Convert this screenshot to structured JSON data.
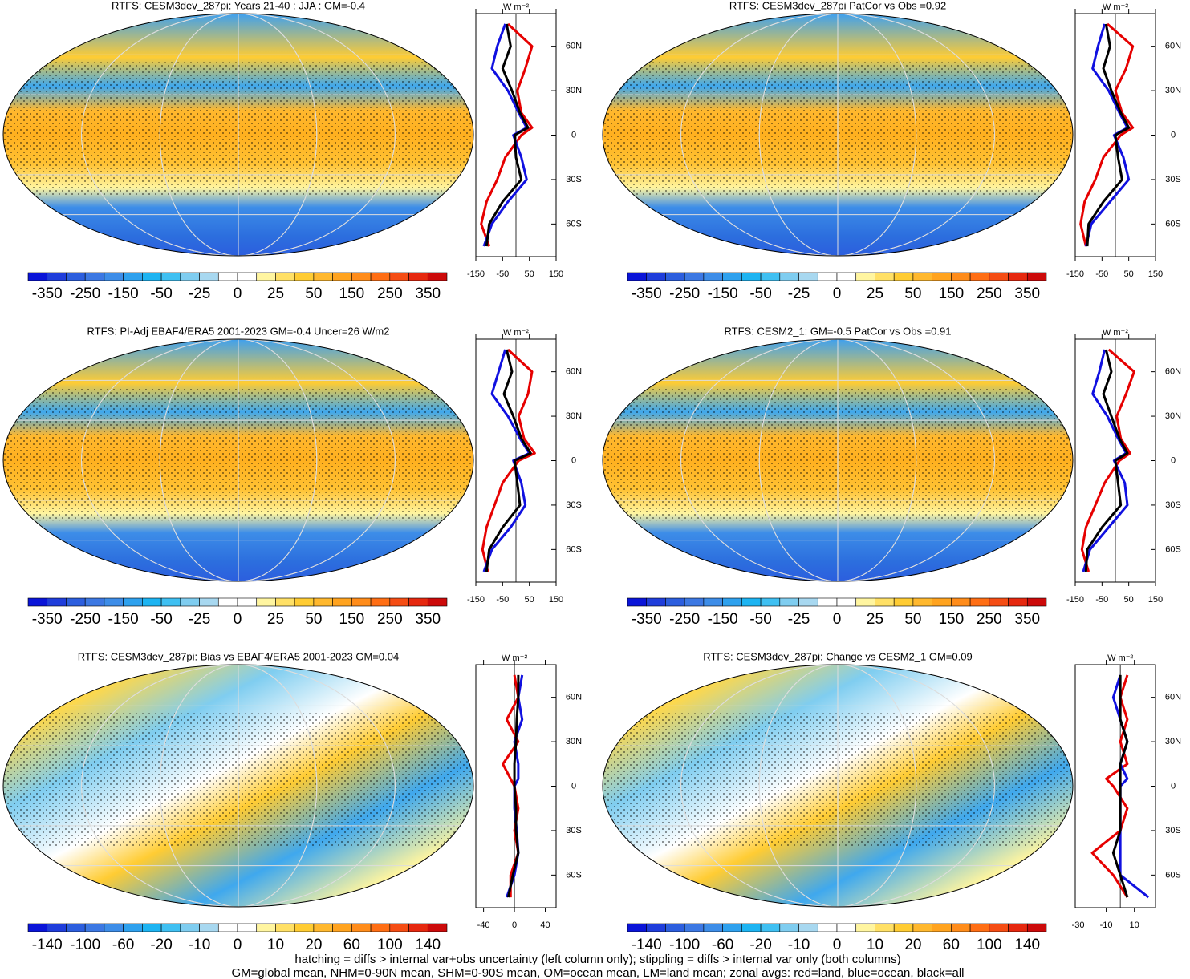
{
  "colorbar_colors": [
    "#0a14d8",
    "#1f3ddb",
    "#2c5ede",
    "#3c78e3",
    "#3d8de8",
    "#2ea1ee",
    "#1db4f2",
    "#3fc0f2",
    "#7fcdf0",
    "#a8d8f0",
    "#ffffff",
    "#ffffff",
    "#fff5a0",
    "#ffe066",
    "#ffcc33",
    "#ffb82e",
    "#ffa31f",
    "#ff8c1a",
    "#ff6e14",
    "#f54d14",
    "#e6280f",
    "#cc0a0a"
  ],
  "chart_data": [
    {
      "type": "map-zonal",
      "title": "RTFS: CESM3dev_287pi: Years 21-40 : JJA : GM=-0.4",
      "colorbar_ticks": [
        -350,
        -250,
        -150,
        -50,
        -25,
        0,
        25,
        50,
        150,
        250,
        350
      ],
      "units": "W m⁻²",
      "y": [
        75,
        60,
        45,
        30,
        15,
        5,
        0,
        -15,
        -30,
        -45,
        -60,
        -75
      ],
      "ylim": [
        -82,
        82
      ],
      "yticks": [
        {
          "value": 60,
          "label": "60N"
        },
        {
          "value": 30,
          "label": "30N"
        },
        0,
        {
          "value": -30,
          "label": "30S"
        },
        {
          "value": -60,
          "label": "60S"
        }
      ],
      "xlim": [
        -150,
        150
      ],
      "xticks": [
        -150,
        -50,
        50,
        150
      ],
      "series": [
        {
          "name": "land",
          "color": "#e60000",
          "values": [
            -30,
            60,
            35,
            5,
            20,
            60,
            20,
            -40,
            -70,
            -110,
            -130,
            -100
          ]
        },
        {
          "name": "ocean",
          "color": "#1010e0",
          "values": [
            -40,
            -70,
            -90,
            -30,
            10,
            40,
            -10,
            20,
            40,
            -30,
            -90,
            -120
          ]
        },
        {
          "name": "all",
          "color": "#000000",
          "values": [
            -35,
            -20,
            -50,
            -15,
            15,
            45,
            -5,
            0,
            20,
            -50,
            -100,
            -110
          ]
        }
      ]
    },
    {
      "type": "map-zonal",
      "title": "RTFS: CESM3dev_287pi PatCor vs Obs =0.92",
      "colorbar_ticks": [
        -350,
        -250,
        -150,
        -50,
        -25,
        0,
        25,
        50,
        150,
        250,
        350
      ],
      "units": "W m⁻²",
      "y": [
        75,
        60,
        45,
        30,
        15,
        5,
        0,
        -15,
        -30,
        -45,
        -60,
        -75
      ],
      "ylim": [
        -82,
        82
      ],
      "yticks": [
        {
          "value": 60,
          "label": "60N"
        },
        {
          "value": 30,
          "label": "30N"
        },
        0,
        {
          "value": -30,
          "label": "30S"
        },
        {
          "value": -60,
          "label": "60S"
        }
      ],
      "xlim": [
        -150,
        150
      ],
      "xticks": [
        -150,
        -50,
        50,
        150
      ],
      "series": [
        {
          "name": "land",
          "color": "#e60000",
          "values": [
            -30,
            65,
            40,
            0,
            25,
            65,
            20,
            -45,
            -75,
            -115,
            -130,
            -110
          ]
        },
        {
          "name": "ocean",
          "color": "#1010e0",
          "values": [
            -40,
            -65,
            -85,
            -25,
            15,
            45,
            -5,
            30,
            50,
            -20,
            -90,
            -110
          ]
        },
        {
          "name": "all",
          "color": "#000000",
          "values": [
            -35,
            -20,
            -45,
            -15,
            20,
            50,
            0,
            10,
            25,
            -45,
            -100,
            -105
          ]
        }
      ]
    },
    {
      "type": "map-zonal",
      "title": "RTFS: PI-Adj EBAF4/ERA5 2001-2023 GM=-0.4 Uncer=26 W/m2",
      "colorbar_ticks": [
        -350,
        -250,
        -150,
        -50,
        -25,
        0,
        25,
        50,
        150,
        250,
        350
      ],
      "units": "W m⁻²",
      "y": [
        75,
        60,
        45,
        30,
        15,
        5,
        0,
        -15,
        -30,
        -45,
        -60,
        -75
      ],
      "ylim": [
        -82,
        82
      ],
      "yticks": [
        {
          "value": 60,
          "label": "60N"
        },
        {
          "value": 30,
          "label": "30N"
        },
        0,
        {
          "value": -30,
          "label": "30S"
        },
        {
          "value": -60,
          "label": "60S"
        }
      ],
      "xlim": [
        -150,
        150
      ],
      "xticks": [
        -150,
        -50,
        50,
        150
      ],
      "series": [
        {
          "name": "land",
          "color": "#e60000",
          "values": [
            -30,
            60,
            45,
            10,
            30,
            70,
            10,
            -50,
            -80,
            -110,
            -125,
            -105
          ]
        },
        {
          "name": "ocean",
          "color": "#1010e0",
          "values": [
            -40,
            -65,
            -90,
            -30,
            15,
            50,
            -10,
            20,
            35,
            -20,
            -90,
            -120
          ]
        },
        {
          "name": "all",
          "color": "#000000",
          "values": [
            -35,
            -15,
            -45,
            -10,
            20,
            55,
            -5,
            5,
            15,
            -50,
            -100,
            -110
          ]
        }
      ]
    },
    {
      "type": "map-zonal",
      "title": "RTFS: CESM2_1: GM=-0.5 PatCor vs Obs =0.91",
      "colorbar_ticks": [
        -350,
        -250,
        -150,
        -50,
        -25,
        0,
        25,
        50,
        150,
        250,
        350
      ],
      "units": "W m⁻²",
      "y": [
        75,
        60,
        45,
        30,
        15,
        5,
        0,
        -15,
        -30,
        -45,
        -60,
        -75
      ],
      "ylim": [
        -82,
        82
      ],
      "yticks": [
        {
          "value": 60,
          "label": "60N"
        },
        {
          "value": 30,
          "label": "30N"
        },
        0,
        {
          "value": -30,
          "label": "30S"
        },
        {
          "value": -60,
          "label": "60S"
        }
      ],
      "xlim": [
        -150,
        150
      ],
      "xticks": [
        -150,
        -50,
        50,
        150
      ],
      "series": [
        {
          "name": "land",
          "color": "#e60000",
          "values": [
            -25,
            70,
            40,
            5,
            20,
            55,
            15,
            -40,
            -75,
            -110,
            -125,
            -100
          ]
        },
        {
          "name": "ocean",
          "color": "#1010e0",
          "values": [
            -40,
            -60,
            -85,
            -30,
            10,
            40,
            -5,
            35,
            45,
            -25,
            -95,
            -120
          ]
        },
        {
          "name": "all",
          "color": "#000000",
          "values": [
            -35,
            -15,
            -45,
            -15,
            15,
            45,
            0,
            10,
            20,
            -50,
            -105,
            -110
          ]
        }
      ]
    },
    {
      "type": "map-zonal",
      "title": "RTFS: CESM3dev_287pi: Bias vs EBAF4/ERA5 2001-2023 GM=0.04",
      "colorbar_ticks": [
        -140,
        -100,
        -60,
        -20,
        -10,
        0,
        10,
        20,
        60,
        100,
        140
      ],
      "units": "W m⁻²",
      "y": [
        75,
        60,
        45,
        30,
        15,
        5,
        0,
        -15,
        -30,
        -45,
        -60,
        -75
      ],
      "ylim": [
        -82,
        82
      ],
      "yticks": [
        {
          "value": 60,
          "label": "60N"
        },
        {
          "value": 30,
          "label": "30N"
        },
        0,
        {
          "value": -30,
          "label": "30S"
        },
        {
          "value": -60,
          "label": "60S"
        }
      ],
      "xlim": [
        -50,
        54
      ],
      "xticks": [
        -40,
        0,
        40
      ],
      "series": [
        {
          "name": "land",
          "color": "#e60000",
          "values": [
            0,
            5,
            -10,
            5,
            -15,
            -5,
            0,
            5,
            0,
            5,
            -5,
            -5
          ]
        },
        {
          "name": "ocean",
          "color": "#1010e0",
          "values": [
            10,
            5,
            10,
            0,
            5,
            5,
            0,
            0,
            3,
            5,
            0,
            -10
          ]
        },
        {
          "name": "all",
          "color": "#000000",
          "values": [
            5,
            5,
            3,
            2,
            0,
            0,
            0,
            2,
            2,
            5,
            -2,
            -8
          ]
        }
      ]
    },
    {
      "type": "map-zonal",
      "title": "RTFS: CESM3dev_287pi: Change vs CESM2_1 GM=0.09",
      "colorbar_ticks": [
        -140,
        -100,
        -60,
        -20,
        -10,
        0,
        10,
        20,
        60,
        100,
        140
      ],
      "units": "W m⁻²",
      "y": [
        75,
        60,
        45,
        30,
        15,
        5,
        0,
        -15,
        -30,
        -45,
        -60,
        -75
      ],
      "ylim": [
        -82,
        82
      ],
      "yticks": [
        {
          "value": 60,
          "label": "60N"
        },
        {
          "value": 30,
          "label": "30N"
        },
        0,
        {
          "value": -30,
          "label": "30S"
        },
        {
          "value": -60,
          "label": "60S"
        }
      ],
      "xlim": [
        -32,
        25
      ],
      "xticks": [
        -30,
        -10,
        10
      ],
      "series": [
        {
          "name": "land",
          "color": "#e60000",
          "values": [
            5,
            0,
            5,
            0,
            5,
            -10,
            -5,
            5,
            0,
            -20,
            -5,
            5
          ]
        },
        {
          "name": "ocean",
          "color": "#1010e0",
          "values": [
            0,
            -5,
            0,
            5,
            0,
            5,
            0,
            0,
            0,
            0,
            0,
            20
          ]
        },
        {
          "name": "all",
          "color": "#000000",
          "values": [
            0,
            0,
            0,
            5,
            0,
            0,
            0,
            0,
            0,
            -5,
            0,
            5
          ]
        }
      ]
    }
  ],
  "footer": [
    "hatching = diffs > internal var+obs uncertainty (left column only); stippling = diffs > internal var only (both columns)",
    "GM=global mean, NHM=0-90N mean, SHM=0-90S mean, OM=ocean mean, LM=land mean; zonal avgs: red=land, blue=ocean, black=all"
  ]
}
